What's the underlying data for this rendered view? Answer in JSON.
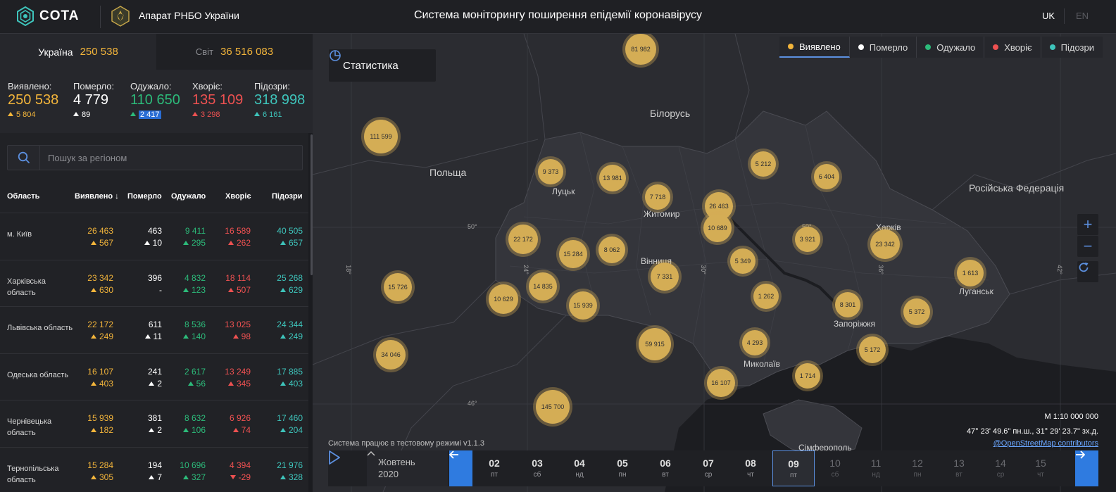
{
  "header": {
    "logo_text": "COTA",
    "org_name": "Апарат РНБО України",
    "system_title": "Система моніторингу поширення епідемії коронавірусу",
    "lang_uk": "UK",
    "lang_en": "EN"
  },
  "scope": {
    "ukraine_label": "Україна",
    "ukraine_value": "250 538",
    "world_label": "Світ",
    "world_value": "36 516 083"
  },
  "totals": {
    "detected": {
      "label": "Виявлено:",
      "value": "250 538",
      "delta": "5 804"
    },
    "died": {
      "label": "Померло:",
      "value": "4 779",
      "delta": "89"
    },
    "recovered": {
      "label": "Одужало:",
      "value": "110 650",
      "delta": "2 417"
    },
    "sick": {
      "label": "Хворіє:",
      "value": "135 109",
      "delta": "3 298"
    },
    "suspected": {
      "label": "Підозри:",
      "value": "318 998",
      "delta": "6 161"
    }
  },
  "search": {
    "placeholder": "Пошук за регіоном"
  },
  "table": {
    "headers": {
      "region": "Область",
      "detected": "Виявлено",
      "died": "Померло",
      "recovered": "Одужало",
      "sick": "Хворіє",
      "suspected": "Підозри"
    },
    "rows": [
      {
        "name": "м. Київ",
        "detected": "26 463",
        "detected_d": "567",
        "died": "463",
        "died_d": "10",
        "recovered": "9 411",
        "recovered_d": "295",
        "sick": "16 589",
        "sick_d": "262",
        "suspected": "40 505",
        "suspected_d": "657"
      },
      {
        "name": "Харківська область",
        "detected": "23 342",
        "detected_d": "630",
        "died": "396",
        "died_d": "-",
        "recovered": "4 832",
        "recovered_d": "123",
        "sick": "18 114",
        "sick_d": "507",
        "suspected": "25 268",
        "suspected_d": "629"
      },
      {
        "name": "Львівська область",
        "detected": "22 172",
        "detected_d": "249",
        "died": "611",
        "died_d": "11",
        "recovered": "8 536",
        "recovered_d": "140",
        "sick": "13 025",
        "sick_d": "98",
        "suspected": "24 344",
        "suspected_d": "249"
      },
      {
        "name": "Одеська область",
        "detected": "16 107",
        "detected_d": "403",
        "died": "241",
        "died_d": "2",
        "recovered": "2 617",
        "recovered_d": "56",
        "sick": "13 249",
        "sick_d": "345",
        "suspected": "17 885",
        "suspected_d": "403"
      },
      {
        "name": "Чернівецька область",
        "detected": "15 939",
        "detected_d": "182",
        "died": "381",
        "died_d": "2",
        "recovered": "8 632",
        "recovered_d": "106",
        "sick": "6 926",
        "sick_d": "74",
        "suspected": "17 460",
        "suspected_d": "204"
      },
      {
        "name": "Тернопільська область",
        "detected": "15 284",
        "detected_d": "305",
        "died": "194",
        "died_d": "7",
        "recovered": "10 696",
        "recovered_d": "327",
        "sick": "4 394",
        "sick_d": "-29",
        "suspected": "21 976",
        "suspected_d": "328"
      }
    ]
  },
  "map": {
    "stat_button": "Статистика",
    "legend": [
      "Виявлено",
      "Померло",
      "Одужало",
      "Хворіє",
      "Підозри"
    ],
    "countries": [
      "Білорусь",
      "Польща",
      "Російська Федерація"
    ],
    "cities": [
      "Луцьк",
      "Житомир",
      "Вінниця",
      "Харків",
      "Луганськ",
      "Запоріжжя",
      "Миколаїв",
      "Сімферополь"
    ],
    "grid_labels": [
      "50°",
      "50°",
      "46°",
      "18°",
      "24°",
      "30°",
      "36°",
      "42°"
    ],
    "clusters": [
      "81 982",
      "111 599",
      "9 373",
      "13 981",
      "7 718",
      "26 463",
      "10 689",
      "5 212",
      "6 404",
      "22 172",
      "15 284",
      "8 062",
      "5 349",
      "3 921",
      "23 342",
      "15 726",
      "14 835",
      "7 331",
      "1 613",
      "10 629",
      "15 939",
      "1 262",
      "8 301",
      "5 372",
      "34 046",
      "59 915",
      "4 293",
      "5 172",
      "1 714",
      "16 107",
      "145 700"
    ],
    "scale": "М 1:10 000 000",
    "coords": "47° 23' 49.6\" пн.ш., 31° 29' 23.7\" зх.д.",
    "osm": "@OpenStreetMap contributors",
    "test_mode": "Система працює в тестовому режимі v1.1.3"
  },
  "timeline": {
    "month": "Жовтень",
    "year": "2020",
    "days": [
      {
        "num": "02",
        "wd": "пт"
      },
      {
        "num": "03",
        "wd": "сб"
      },
      {
        "num": "04",
        "wd": "нд"
      },
      {
        "num": "05",
        "wd": "пн"
      },
      {
        "num": "06",
        "wd": "вт"
      },
      {
        "num": "07",
        "wd": "ср"
      },
      {
        "num": "08",
        "wd": "чт"
      },
      {
        "num": "09",
        "wd": "пт"
      },
      {
        "num": "10",
        "wd": "сб"
      },
      {
        "num": "11",
        "wd": "нд"
      },
      {
        "num": "12",
        "wd": "пн"
      },
      {
        "num": "13",
        "wd": "вт"
      },
      {
        "num": "14",
        "wd": "ср"
      },
      {
        "num": "15",
        "wd": "чт"
      }
    ]
  },
  "colors": {
    "detected": "#f3b53b",
    "died": "#ffffff",
    "recovered": "#2cbb7a",
    "sick": "#ee5151",
    "suspected": "#3ec4bb",
    "accent": "#2f7be0"
  }
}
